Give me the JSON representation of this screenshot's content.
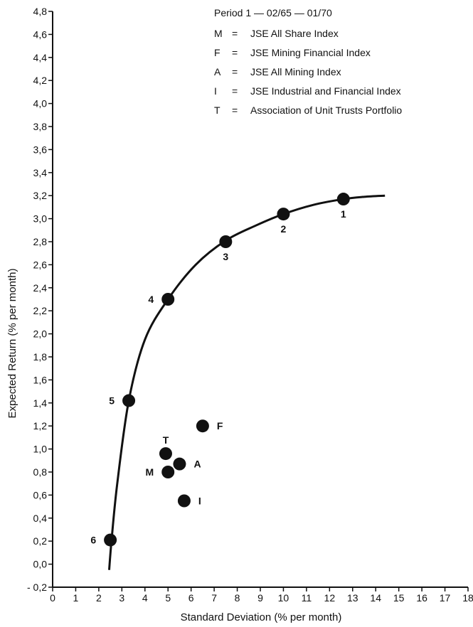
{
  "chart_data": {
    "type": "scatter",
    "xlabel": "Standard Deviation (% per month)",
    "ylabel": "Expected Return (% per month)",
    "xlim": [
      0,
      18
    ],
    "ylim": [
      -0.2,
      4.8
    ],
    "x_ticks": [
      "0",
      "1",
      "2",
      "3",
      "4",
      "5",
      "6",
      "7",
      "8",
      "9",
      "10",
      "11",
      "12",
      "13",
      "14",
      "15",
      "16",
      "17",
      "18"
    ],
    "y_ticks": [
      "- 0,2",
      "0,0",
      "0,2",
      "0,4",
      "0,6",
      "0,8",
      "1,0",
      "1,2",
      "1,4",
      "1,6",
      "1,8",
      "2,0",
      "2,2",
      "2,4",
      "2,6",
      "2,8",
      "3,0",
      "3,2",
      "3,4",
      "3,6",
      "3,8",
      "4,0",
      "4,2",
      "4,4",
      "4,6",
      "4,8"
    ],
    "legend": {
      "title": "Period 1 — 02/65 — 01/70",
      "entries": [
        {
          "key": "M",
          "sep": "=",
          "label": "JSE All Share Index"
        },
        {
          "key": "F",
          "sep": "=",
          "label": "JSE Mining Financial Index"
        },
        {
          "key": "A",
          "sep": "=",
          "label": "JSE All Mining Index"
        },
        {
          "key": "I",
          "sep": "=",
          "label": "JSE Industrial and Financial Index"
        },
        {
          "key": "T",
          "sep": "=",
          "label": "Association of Unit Trusts Portfolio"
        }
      ]
    },
    "series": [
      {
        "kind": "frontier",
        "curve": [
          {
            "x": 2.45,
            "y": -0.05
          },
          {
            "x": 2.55,
            "y": 0.2
          },
          {
            "x": 2.8,
            "y": 0.7
          },
          {
            "x": 3.3,
            "y": 1.42
          },
          {
            "x": 4.0,
            "y": 1.95
          },
          {
            "x": 5.0,
            "y": 2.3
          },
          {
            "x": 6.2,
            "y": 2.6
          },
          {
            "x": 7.5,
            "y": 2.81
          },
          {
            "x": 8.8,
            "y": 2.94
          },
          {
            "x": 10.0,
            "y": 3.04
          },
          {
            "x": 11.3,
            "y": 3.12
          },
          {
            "x": 12.6,
            "y": 3.17
          },
          {
            "x": 13.5,
            "y": 3.19
          },
          {
            "x": 14.4,
            "y": 3.2
          }
        ],
        "points": [
          {
            "label": "1",
            "x": 12.6,
            "y": 3.17,
            "label_pos": "below"
          },
          {
            "label": "2",
            "x": 10.0,
            "y": 3.04,
            "label_pos": "below"
          },
          {
            "label": "3",
            "x": 7.5,
            "y": 2.8,
            "label_pos": "below"
          },
          {
            "label": "4",
            "x": 5.0,
            "y": 2.3,
            "label_pos": "left"
          },
          {
            "label": "5",
            "x": 3.3,
            "y": 1.42,
            "label_pos": "left"
          },
          {
            "label": "6",
            "x": 2.5,
            "y": 0.21,
            "label_pos": "left"
          }
        ]
      },
      {
        "kind": "indices",
        "points": [
          {
            "label": "F",
            "x": 6.5,
            "y": 1.2,
            "label_pos": "right"
          },
          {
            "label": "T",
            "x": 4.9,
            "y": 0.96,
            "label_pos": "above"
          },
          {
            "label": "A",
            "x": 5.5,
            "y": 0.87,
            "label_pos": "right"
          },
          {
            "label": "M",
            "x": 5.0,
            "y": 0.8,
            "label_pos": "left"
          },
          {
            "label": "I",
            "x": 5.7,
            "y": 0.55,
            "label_pos": "right"
          }
        ]
      }
    ]
  }
}
